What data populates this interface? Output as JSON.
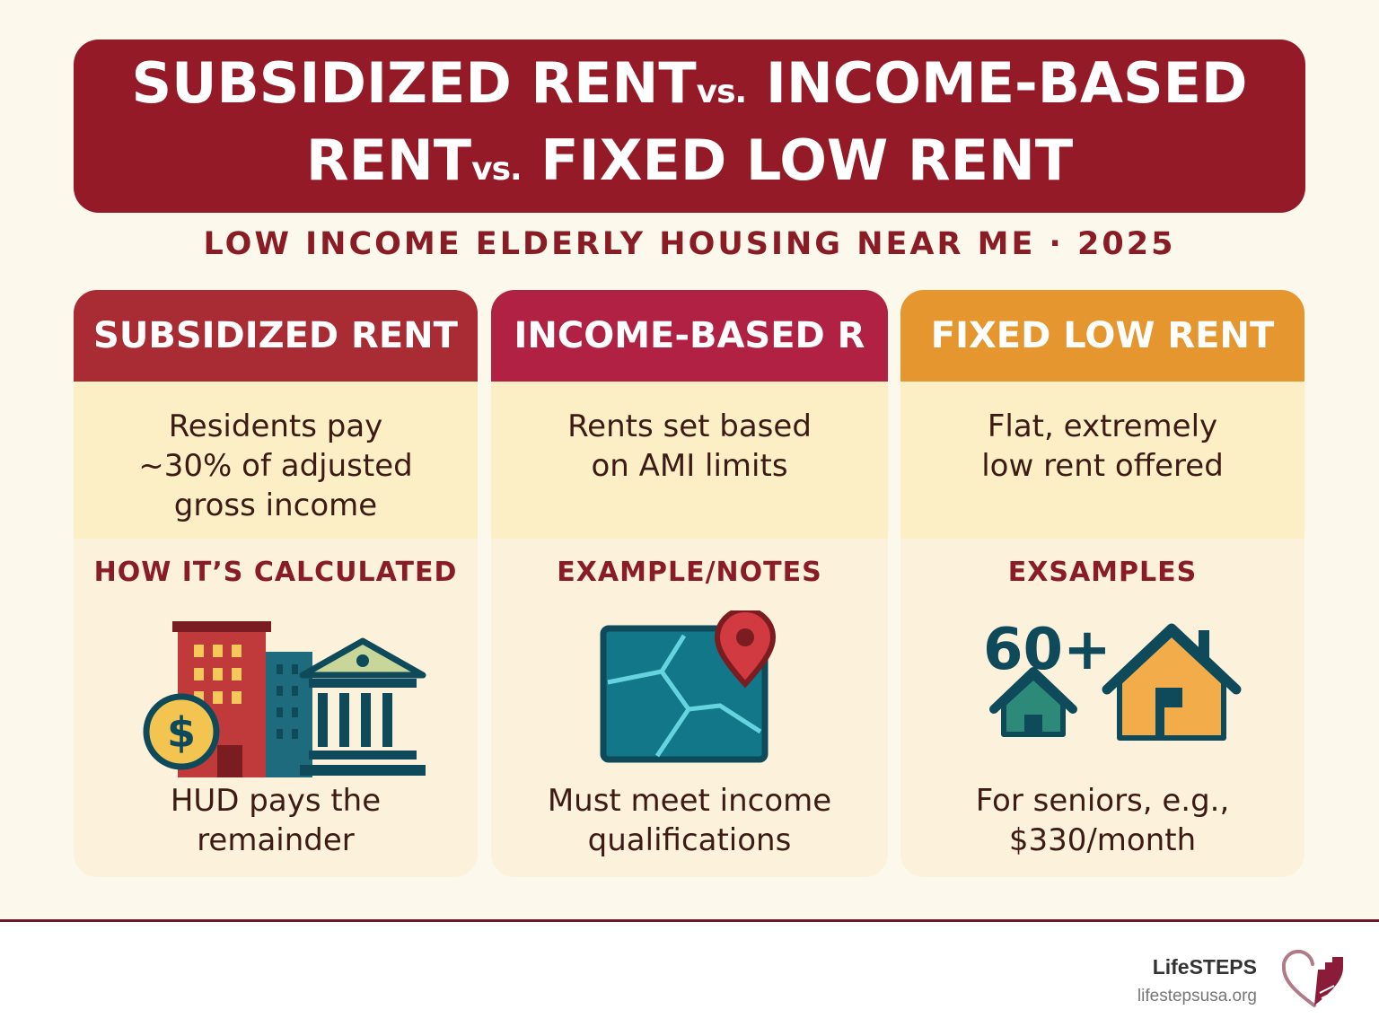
{
  "header": {
    "line1_a": "SUBSIDIZED RENT",
    "vs1": "vs.",
    "line1_b": "INCOME-BASED",
    "line2_a": "RENT",
    "vs2": "vs.",
    "line2_b": "FIXED LOW RENT"
  },
  "subtitle": "LOW INCOME ELDERLY HOUSING NEAR ME · 2025",
  "cards": [
    {
      "title": "SUBSIDIZED RENT",
      "description": "Residents pay ~30% of adjusted gross income",
      "section_label": "HOW IT’S CALCULATED",
      "footer": "HUD pays the remainder",
      "color": "#a92b34"
    },
    {
      "title": "INCOME-BASED R",
      "description": "Rents set based on AMI limits",
      "section_label": "EXAMPLE/NOTES",
      "footer": "Must meet income qualifications",
      "color": "#b02143"
    },
    {
      "title": "FIXED LOW RENT",
      "description": "Flat, extremely low rent offered",
      "section_label": "EXSAMPLES",
      "age_label": "60+",
      "footer": "For seniors, e.g., $330/month",
      "color": "#e5962e"
    }
  ],
  "brand": {
    "name": "LifeSTEPS",
    "url": "lifestepsusa.org"
  },
  "icons": [
    "buildings-icon",
    "dollar-coin-icon",
    "bank-icon",
    "map-pin-icon",
    "small-house-icon",
    "house-icon"
  ]
}
